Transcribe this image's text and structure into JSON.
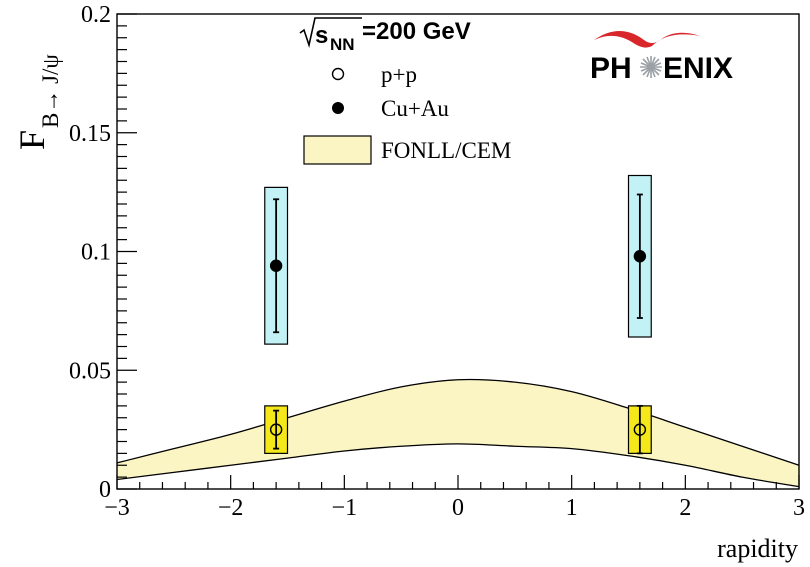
{
  "chart_data": {
    "type": "scatter",
    "title": "",
    "ylabel_main": "F",
    "ylabel_sub": "B→ J/ψ",
    "xlabel": "rapidity",
    "xlim": [
      -3,
      3
    ],
    "ylim": [
      0,
      0.2
    ],
    "x_ticks": [
      -3,
      -2,
      -1,
      0,
      1,
      2,
      3
    ],
    "x_tick_labels": [
      "−3",
      "−2",
      "−1",
      "0",
      "1",
      "2",
      "3"
    ],
    "y_ticks": [
      0,
      0.05,
      0.1,
      0.15,
      0.2
    ],
    "y_tick_labels": [
      "0",
      "0.05",
      "0.1",
      "0.15",
      "0.2"
    ],
    "energy_label": {
      "sqrt_part": "s",
      "subscript": "NN",
      "value": "=200 GeV"
    },
    "logo": {
      "left": "PH",
      "right": "ENIX"
    },
    "series": [
      {
        "name": "Cu+Au",
        "marker": "filled-circle",
        "points": [
          {
            "x": -1.6,
            "y": 0.094,
            "stat_low": 0.066,
            "stat_high": 0.122,
            "sys_low": 0.061,
            "sys_high": 0.127,
            "sys_half_width": 0.1
          },
          {
            "x": 1.6,
            "y": 0.098,
            "stat_low": 0.072,
            "stat_high": 0.124,
            "sys_low": 0.064,
            "sys_high": 0.132,
            "sys_half_width": 0.1
          }
        ],
        "sys_box_color": "#c2f2f6"
      },
      {
        "name": "p+p",
        "marker": "open-circle",
        "points": [
          {
            "x": -1.6,
            "y": 0.025,
            "stat_low": 0.017,
            "stat_high": 0.033,
            "sys_low": 0.015,
            "sys_high": 0.035,
            "sys_half_width": 0.1
          },
          {
            "x": 1.6,
            "y": 0.025,
            "stat_low": 0.015,
            "stat_high": 0.035,
            "sys_low": 0.015,
            "sys_high": 0.035,
            "sys_half_width": 0.1
          }
        ],
        "sys_box_color": "#f5e81a"
      }
    ],
    "band": {
      "name": "FONLL/CEM",
      "color": "#fbf5c4",
      "x": [
        -3,
        -2.5,
        -2,
        -1.5,
        -1,
        -0.5,
        0,
        0.5,
        1,
        1.5,
        2,
        2.5,
        3
      ],
      "upper": [
        0.011,
        0.017,
        0.023,
        0.03,
        0.037,
        0.043,
        0.046,
        0.045,
        0.041,
        0.034,
        0.026,
        0.018,
        0.01
      ],
      "lower": [
        0.004,
        0.007,
        0.01,
        0.013,
        0.016,
        0.018,
        0.019,
        0.018,
        0.017,
        0.014,
        0.01,
        0.005,
        0.001
      ]
    },
    "legend_placement": "top-center",
    "grid": false
  }
}
